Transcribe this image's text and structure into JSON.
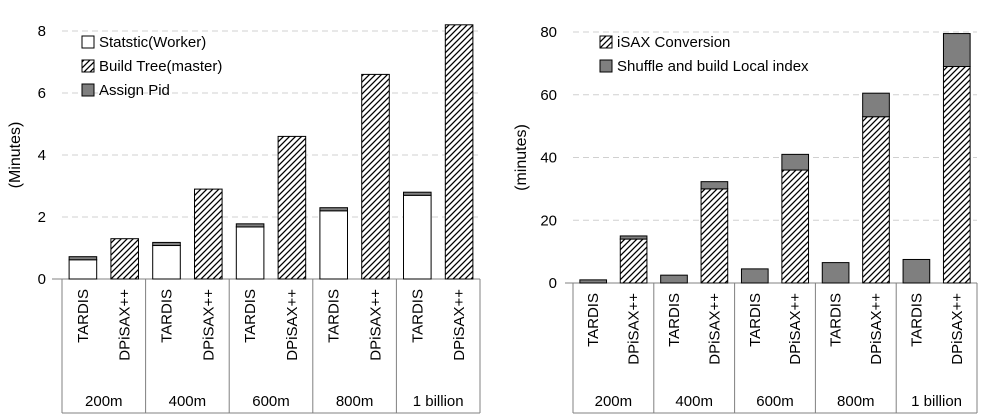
{
  "chart_data": [
    {
      "type": "bar",
      "stacked": true,
      "ylabel": "(Minutes)",
      "ylim": [
        0,
        8
      ],
      "yticks": [
        0,
        2,
        4,
        6,
        8
      ],
      "grid": true,
      "legend_position": "top-left",
      "groups": [
        "200m",
        "400m",
        "600m",
        "800m",
        "1 billion"
      ],
      "systems": [
        "TARDIS",
        "DPiSAX++"
      ],
      "series": [
        {
          "name": "Statstic(Worker)",
          "pattern": "white",
          "values": [
            [
              0.62,
              0
            ],
            [
              1.08,
              0
            ],
            [
              1.68,
              0
            ],
            [
              2.2,
              0
            ],
            [
              2.7,
              0
            ]
          ]
        },
        {
          "name": "Build Tree(master)",
          "pattern": "hatch",
          "values": [
            [
              0,
              1.3
            ],
            [
              0,
              2.9
            ],
            [
              0,
              4.6
            ],
            [
              0,
              6.6
            ],
            [
              0,
              8.2
            ]
          ]
        },
        {
          "name": "Assign Pid",
          "pattern": "gray",
          "values": [
            [
              0.1,
              0
            ],
            [
              0.1,
              0
            ],
            [
              0.1,
              0
            ],
            [
              0.1,
              0
            ],
            [
              0.1,
              0
            ]
          ]
        }
      ]
    },
    {
      "type": "bar",
      "stacked": true,
      "ylabel": "(minutes)",
      "ylim": [
        0,
        80
      ],
      "yticks": [
        0,
        20,
        40,
        60,
        80
      ],
      "grid": true,
      "legend_position": "top-left",
      "groups": [
        "200m",
        "400m",
        "600m",
        "800m",
        "1 billion"
      ],
      "systems": [
        "TARDIS",
        "DPiSAX++"
      ],
      "series": [
        {
          "name": "iSAX Conversion",
          "pattern": "hatch",
          "values": [
            [
              0,
              14
            ],
            [
              0,
              30
            ],
            [
              0,
              36
            ],
            [
              0,
              53
            ],
            [
              0,
              69
            ]
          ]
        },
        {
          "name": "Shuffle and build Local index",
          "pattern": "gray",
          "values": [
            [
              1,
              1
            ],
            [
              2.5,
              2.3
            ],
            [
              4.5,
              5
            ],
            [
              6.5,
              7.5
            ],
            [
              7.5,
              10.5
            ]
          ]
        }
      ]
    }
  ],
  "colors": {
    "gray": "#7f7f7f",
    "bar_stroke": "#000000",
    "grid": "#d0d0d0",
    "axis": "#808080"
  }
}
